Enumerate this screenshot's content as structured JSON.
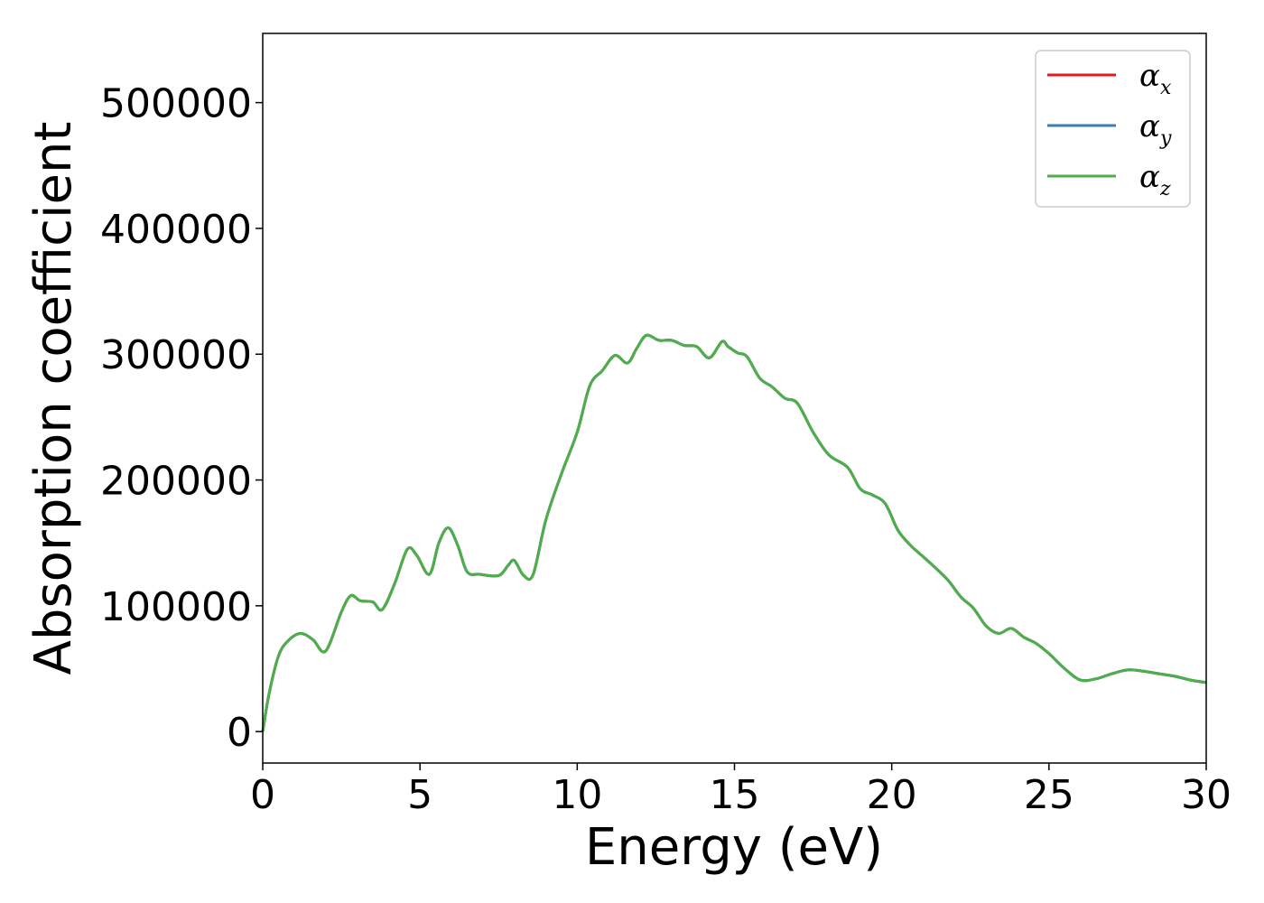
{
  "chart_data": {
    "type": "line",
    "title": "",
    "xlabel": "Energy (eV)",
    "ylabel": "Absorption coefficient",
    "xlim": [
      0,
      30
    ],
    "ylim": [
      -25000,
      555000
    ],
    "xticks": [
      0,
      5,
      10,
      15,
      20,
      25,
      30
    ],
    "yticks": [
      0,
      100000,
      200000,
      300000,
      400000,
      500000
    ],
    "xtick_labels": [
      "0",
      "5",
      "10",
      "15",
      "20",
      "25",
      "30"
    ],
    "ytick_labels": [
      "0",
      "100000",
      "200000",
      "300000",
      "400000",
      "500000"
    ],
    "grid": false,
    "legend_position": "top-right",
    "x": [
      0,
      0.2,
      0.5,
      0.8,
      1.2,
      1.6,
      2.0,
      2.5,
      2.8,
      3.1,
      3.5,
      3.8,
      4.2,
      4.6,
      4.9,
      5.3,
      5.6,
      5.9,
      6.2,
      6.5,
      6.9,
      7.5,
      7.8,
      8.0,
      8.3,
      8.6,
      9.0,
      9.5,
      10.0,
      10.4,
      10.8,
      11.2,
      11.6,
      11.9,
      12.2,
      12.6,
      13.0,
      13.4,
      13.8,
      14.2,
      14.6,
      14.8,
      15.1,
      15.4,
      15.8,
      16.2,
      16.6,
      17.0,
      17.5,
      18.0,
      18.6,
      19.0,
      19.4,
      19.8,
      20.2,
      20.6,
      21.0,
      21.4,
      21.8,
      22.2,
      22.6,
      23.0,
      23.4,
      23.8,
      24.2,
      24.6,
      25.0,
      25.5,
      26.0,
      26.5,
      27.0,
      27.5,
      28.0,
      28.5,
      29.0,
      29.5,
      30.0
    ],
    "series": [
      {
        "name": "α_x",
        "label_main": "α",
        "label_sub": "x",
        "color": "#e41a1c",
        "values": [
          0,
          30000,
          60000,
          72000,
          78000,
          73000,
          64000,
          95000,
          108000,
          104000,
          103000,
          97000,
          118000,
          145000,
          140000,
          125000,
          150000,
          162000,
          148000,
          127000,
          125000,
          124000,
          132000,
          136000,
          124000,
          125000,
          168000,
          205000,
          238000,
          275000,
          287000,
          299000,
          293000,
          305000,
          315000,
          311000,
          311000,
          307000,
          306000,
          297000,
          310000,
          306000,
          301000,
          298000,
          281000,
          274000,
          265000,
          261000,
          238000,
          220000,
          210000,
          193000,
          188000,
          181000,
          160000,
          148000,
          139000,
          130000,
          120000,
          107000,
          98000,
          84000,
          78000,
          82000,
          75000,
          70000,
          62000,
          50000,
          41000,
          42000,
          46000,
          49000,
          48000,
          46000,
          44000,
          41000,
          39000
        ]
      },
      {
        "name": "α_y",
        "label_main": "α",
        "label_sub": "y",
        "color": "#377eb8",
        "values": [
          0,
          30000,
          60000,
          72000,
          78000,
          73000,
          64000,
          95000,
          108000,
          104000,
          103000,
          97000,
          118000,
          145000,
          140000,
          125000,
          150000,
          162000,
          148000,
          127000,
          125000,
          124000,
          132000,
          136000,
          124000,
          125000,
          168000,
          205000,
          238000,
          275000,
          287000,
          299000,
          293000,
          305000,
          315000,
          311000,
          311000,
          307000,
          306000,
          297000,
          310000,
          306000,
          301000,
          298000,
          281000,
          274000,
          265000,
          261000,
          238000,
          220000,
          210000,
          193000,
          188000,
          181000,
          160000,
          148000,
          139000,
          130000,
          120000,
          107000,
          98000,
          84000,
          78000,
          82000,
          75000,
          70000,
          62000,
          50000,
          41000,
          42000,
          46000,
          49000,
          48000,
          46000,
          44000,
          41000,
          39000
        ]
      },
      {
        "name": "α_z",
        "label_main": "α",
        "label_sub": "z",
        "color": "#4daf4a",
        "values": [
          0,
          30000,
          60000,
          72000,
          78000,
          73000,
          64000,
          95000,
          108000,
          104000,
          103000,
          97000,
          118000,
          145000,
          140000,
          125000,
          150000,
          162000,
          148000,
          127000,
          125000,
          124000,
          132000,
          136000,
          124000,
          125000,
          168000,
          205000,
          238000,
          275000,
          287000,
          299000,
          293000,
          305000,
          315000,
          311000,
          311000,
          307000,
          306000,
          297000,
          310000,
          306000,
          301000,
          298000,
          281000,
          274000,
          265000,
          261000,
          238000,
          220000,
          210000,
          193000,
          188000,
          181000,
          160000,
          148000,
          139000,
          130000,
          120000,
          107000,
          98000,
          84000,
          78000,
          82000,
          75000,
          70000,
          62000,
          50000,
          41000,
          42000,
          46000,
          49000,
          48000,
          46000,
          44000,
          41000,
          39000
        ]
      }
    ]
  }
}
